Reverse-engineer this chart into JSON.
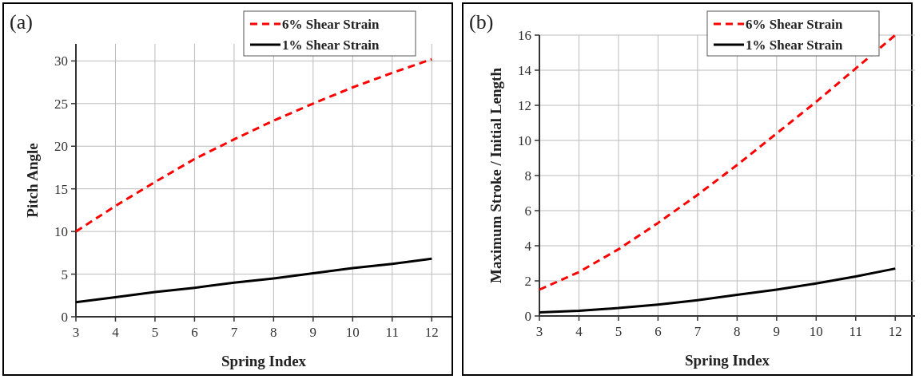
{
  "chart_data": [
    {
      "type": "line",
      "title": "(a)",
      "xlabel": "Spring Index",
      "ylabel": "Pitch Angle",
      "x": [
        3,
        4,
        5,
        6,
        7,
        8,
        9,
        10,
        11,
        12
      ],
      "xlim": [
        3,
        12.5
      ],
      "xticks": [
        3,
        4,
        5,
        6,
        7,
        8,
        9,
        10,
        11,
        12
      ],
      "ylim": [
        0,
        32
      ],
      "yticks": [
        0,
        5,
        10,
        15,
        20,
        25,
        30
      ],
      "grid": true,
      "legend": "top right",
      "series": [
        {
          "name": "6% Shear Strain",
          "color": "#ff0000",
          "line_style": "dashed",
          "values": [
            10,
            13,
            15.8,
            18.5,
            20.8,
            23,
            25,
            26.9,
            28.6,
            30.2
          ]
        },
        {
          "name": "1% Shear Strain",
          "color": "#000000",
          "line_style": "solid",
          "values": [
            1.7,
            2.3,
            2.9,
            3.4,
            4.0,
            4.5,
            5.1,
            5.7,
            6.2,
            6.8
          ]
        }
      ]
    },
    {
      "type": "line",
      "title": "(b)",
      "xlabel": "Spring Index",
      "ylabel": "Maximum Stroke / Initial Length",
      "x": [
        3,
        4,
        5,
        6,
        7,
        8,
        9,
        10,
        11,
        12
      ],
      "xlim": [
        3,
        12.5
      ],
      "xticks": [
        3,
        4,
        5,
        6,
        7,
        8,
        9,
        10,
        11,
        12
      ],
      "ylim": [
        0,
        16
      ],
      "yticks": [
        0,
        2,
        4,
        6,
        8,
        10,
        12,
        14,
        16
      ],
      "grid": true,
      "legend": "top right",
      "series": [
        {
          "name": "6% Shear Strain",
          "color": "#ff0000",
          "line_style": "dashed",
          "values": [
            1.5,
            2.5,
            3.8,
            5.3,
            6.9,
            8.6,
            10.4,
            12.2,
            14.1,
            16.0
          ]
        },
        {
          "name": "1% Shear Strain",
          "color": "#000000",
          "line_style": "solid",
          "values": [
            0.2,
            0.3,
            0.45,
            0.65,
            0.9,
            1.2,
            1.5,
            1.85,
            2.25,
            2.7
          ]
        }
      ]
    }
  ]
}
